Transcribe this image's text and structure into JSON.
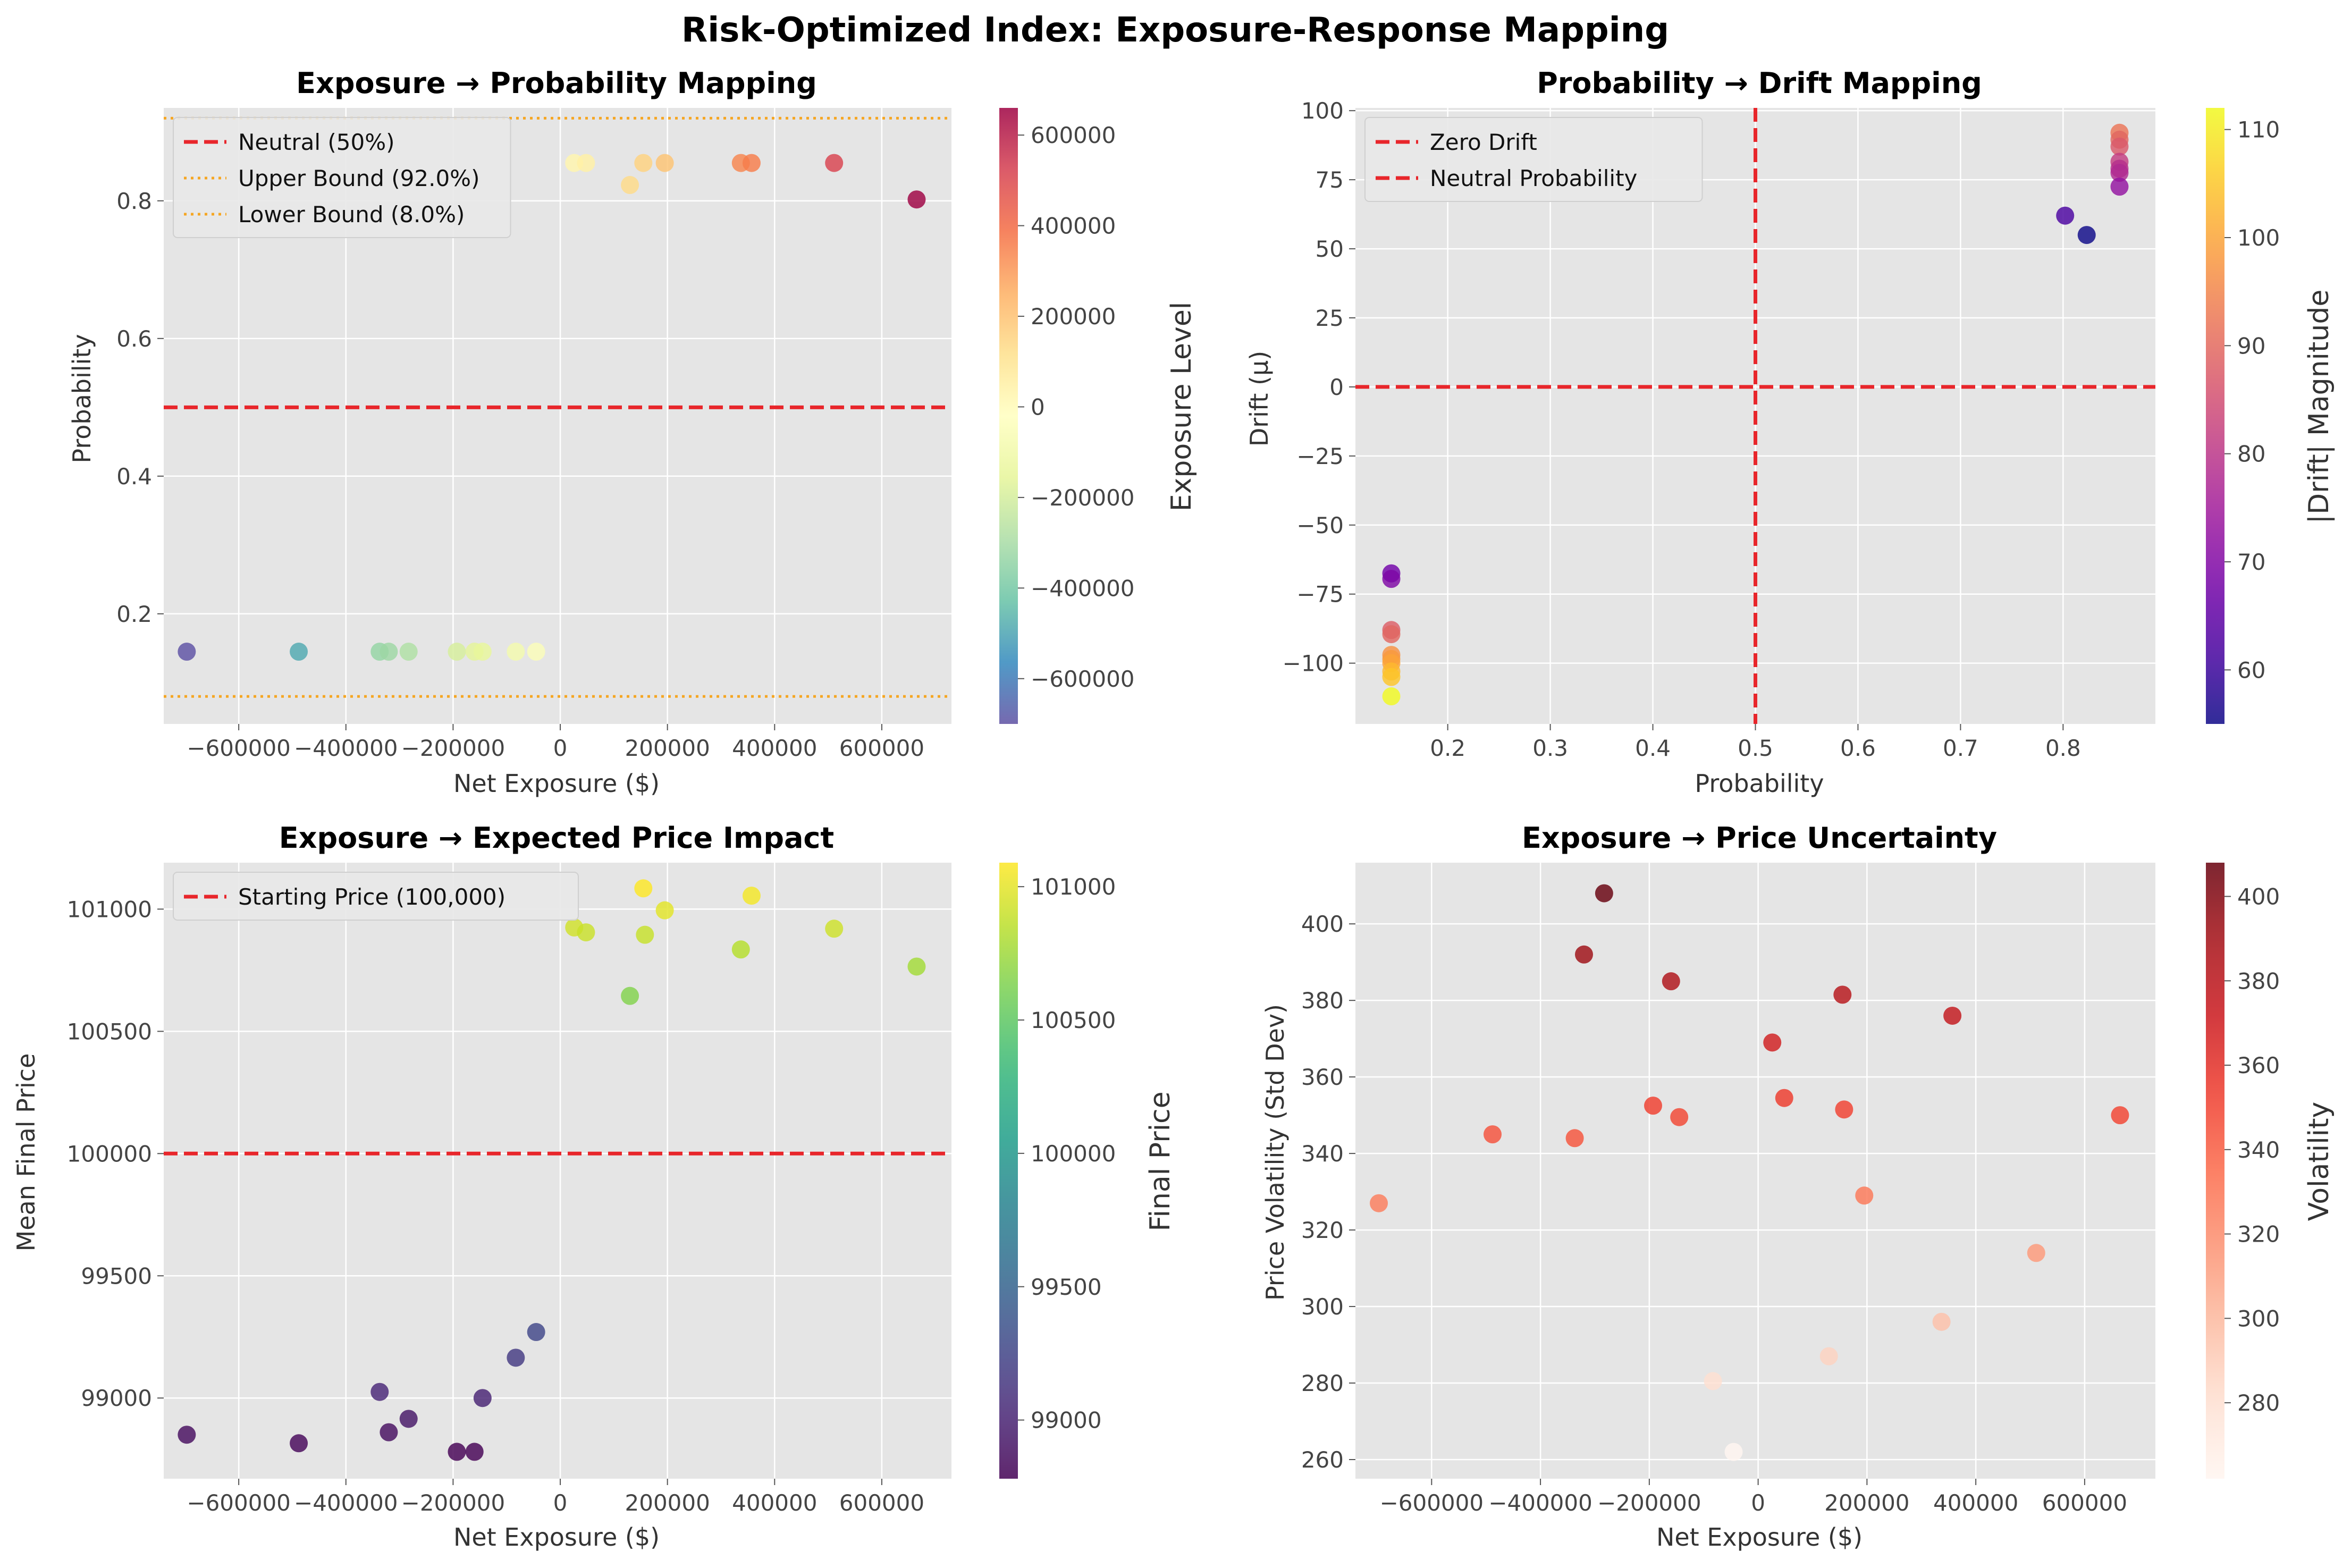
{
  "figure": {
    "title": "Risk-Optimized Index: Exposure-Response Mapping"
  },
  "colors": {
    "panel_bg": "#e5e5e5",
    "grid": "#ffffff",
    "neutral_line": "#e8262b",
    "bound_line": "#f5a623"
  },
  "chart_data": [
    {
      "id": "p1",
      "type": "scatter",
      "title": "Exposure → Probability Mapping",
      "xlabel": "Net Exposure ($)",
      "ylabel": "Probability",
      "xlim": [
        -740000,
        730000
      ],
      "ylim": [
        0.04,
        0.935
      ],
      "xticks": [
        -600000,
        -400000,
        -200000,
        0,
        200000,
        400000,
        600000
      ],
      "xtick_labels": [
        "−600000",
        "−400000",
        "−200000",
        "0",
        "200000",
        "400000",
        "600000"
      ],
      "yticks": [
        0.2,
        0.4,
        0.6,
        0.8
      ],
      "ytick_labels": [
        "0.2",
        "0.4",
        "0.6",
        "0.8"
      ],
      "colormap": "Spectral_r",
      "color_by": "x",
      "colorbar": {
        "label": "Exposure Level",
        "range": [
          -700000,
          660000
        ],
        "ticks": [
          -600000,
          -400000,
          -200000,
          0,
          200000,
          400000,
          600000
        ],
        "tick_labels": [
          "−600000",
          "−400000",
          "−200000",
          "0",
          "200000",
          "400000",
          "600000"
        ]
      },
      "points": [
        {
          "x": -697000,
          "y": 0.145
        },
        {
          "x": -488000,
          "y": 0.145
        },
        {
          "x": -337000,
          "y": 0.145
        },
        {
          "x": -320000,
          "y": 0.145
        },
        {
          "x": -283000,
          "y": 0.145
        },
        {
          "x": -193000,
          "y": 0.145
        },
        {
          "x": -160000,
          "y": 0.145
        },
        {
          "x": -145000,
          "y": 0.145
        },
        {
          "x": -83000,
          "y": 0.145
        },
        {
          "x": -45000,
          "y": 0.145
        },
        {
          "x": 26000,
          "y": 0.855
        },
        {
          "x": 48000,
          "y": 0.855
        },
        {
          "x": 130000,
          "y": 0.823
        },
        {
          "x": 155000,
          "y": 0.855
        },
        {
          "x": 195000,
          "y": 0.855
        },
        {
          "x": 337000,
          "y": 0.855
        },
        {
          "x": 357000,
          "y": 0.855
        },
        {
          "x": 511000,
          "y": 0.855
        },
        {
          "x": 665000,
          "y": 0.802
        }
      ],
      "hlines": [
        {
          "y": 0.5,
          "style": "dashed",
          "color": "#e8262b",
          "label": "Neutral (50%)"
        },
        {
          "y": 0.92,
          "style": "dotted",
          "color": "#f5a623",
          "label": "Upper Bound (92.0%)"
        },
        {
          "y": 0.08,
          "style": "dotted",
          "color": "#f5a623",
          "label": "Lower Bound (8.0%)"
        }
      ],
      "vlines": [],
      "legend": "upper-left",
      "grid": true
    },
    {
      "id": "p2",
      "type": "scatter",
      "title": "Probability → Drift Mapping",
      "xlabel": "Probability",
      "ylabel": "Drift (μ)",
      "xlim": [
        0.11,
        0.89
      ],
      "ylim": [
        -122,
        101
      ],
      "xticks": [
        0.2,
        0.3,
        0.4,
        0.5,
        0.6,
        0.7,
        0.8
      ],
      "xtick_labels": [
        "0.2",
        "0.3",
        "0.4",
        "0.5",
        "0.6",
        "0.7",
        "0.8"
      ],
      "yticks": [
        -100,
        -75,
        -50,
        -25,
        0,
        25,
        50,
        75,
        100
      ],
      "ytick_labels": [
        "−100",
        "−75",
        "−50",
        "−25",
        "0",
        "25",
        "50",
        "75",
        "100"
      ],
      "colormap": "plasma",
      "color_by": "abs_y",
      "colorbar": {
        "label": "|Drift| Magnitude",
        "range": [
          55,
          112
        ],
        "ticks": [
          60,
          70,
          80,
          90,
          100,
          110
        ],
        "tick_labels": [
          "60",
          "70",
          "80",
          "90",
          "100",
          "110"
        ]
      },
      "points": [
        {
          "x": 0.145,
          "y": -67.5
        },
        {
          "x": 0.145,
          "y": -69.5
        },
        {
          "x": 0.145,
          "y": -88
        },
        {
          "x": 0.145,
          "y": -89.5
        },
        {
          "x": 0.145,
          "y": -97
        },
        {
          "x": 0.145,
          "y": -98.5
        },
        {
          "x": 0.145,
          "y": -100
        },
        {
          "x": 0.145,
          "y": -103
        },
        {
          "x": 0.145,
          "y": -105
        },
        {
          "x": 0.145,
          "y": -112
        },
        {
          "x": 0.802,
          "y": 62
        },
        {
          "x": 0.823,
          "y": 55
        },
        {
          "x": 0.855,
          "y": 92
        },
        {
          "x": 0.855,
          "y": 89.5
        },
        {
          "x": 0.855,
          "y": 87
        },
        {
          "x": 0.855,
          "y": 81.5
        },
        {
          "x": 0.855,
          "y": 79
        },
        {
          "x": 0.855,
          "y": 77.5
        },
        {
          "x": 0.855,
          "y": 72.5
        }
      ],
      "hlines": [
        {
          "y": 0,
          "style": "dashed",
          "color": "#e8262b",
          "label": "Zero Drift"
        }
      ],
      "vlines": [
        {
          "x": 0.5,
          "style": "dashed",
          "color": "#e8262b",
          "label": "Neutral Probability"
        }
      ],
      "legend": "upper-left",
      "grid": true
    },
    {
      "id": "p3",
      "type": "scatter",
      "title": "Exposure → Expected Price Impact",
      "xlabel": "Net Exposure ($)",
      "ylabel": "Mean Final Price",
      "xlim": [
        -740000,
        730000
      ],
      "ylim": [
        98670,
        101190
      ],
      "xticks": [
        -600000,
        -400000,
        -200000,
        0,
        200000,
        400000,
        600000
      ],
      "xtick_labels": [
        "−600000",
        "−400000",
        "−200000",
        "0",
        "200000",
        "400000",
        "600000"
      ],
      "yticks": [
        99000,
        99500,
        100000,
        100500,
        101000
      ],
      "ytick_labels": [
        "99000",
        "99500",
        "100000",
        "100500",
        "101000"
      ],
      "colormap": "viridis",
      "color_by": "y",
      "colorbar": {
        "label": "Final Price",
        "range": [
          98780,
          101090
        ],
        "ticks": [
          99000,
          99500,
          100000,
          100500,
          101000
        ],
        "tick_labels": [
          "99000",
          "99500",
          "100000",
          "100500",
          "101000"
        ]
      },
      "points": [
        {
          "x": -697000,
          "y": 98850
        },
        {
          "x": -488000,
          "y": 98815
        },
        {
          "x": -337000,
          "y": 99025
        },
        {
          "x": -320000,
          "y": 98860
        },
        {
          "x": -283000,
          "y": 98915
        },
        {
          "x": -193000,
          "y": 98780
        },
        {
          "x": -160000,
          "y": 98780
        },
        {
          "x": -145000,
          "y": 99000
        },
        {
          "x": -83000,
          "y": 99165
        },
        {
          "x": -45000,
          "y": 99270
        },
        {
          "x": 26000,
          "y": 100925
        },
        {
          "x": 48000,
          "y": 100905
        },
        {
          "x": 130000,
          "y": 100645
        },
        {
          "x": 155000,
          "y": 101085
        },
        {
          "x": 158000,
          "y": 100895
        },
        {
          "x": 195000,
          "y": 100995
        },
        {
          "x": 337000,
          "y": 100835
        },
        {
          "x": 357000,
          "y": 101055
        },
        {
          "x": 511000,
          "y": 100920
        },
        {
          "x": 665000,
          "y": 100765
        }
      ],
      "hlines": [
        {
          "y": 100000,
          "style": "dashed",
          "color": "#e8262b",
          "label": "Starting Price (100,000)"
        }
      ],
      "vlines": [],
      "legend": "upper-left",
      "grid": true
    },
    {
      "id": "p4",
      "type": "scatter",
      "title": "Exposure → Price Uncertainty",
      "xlabel": "Net Exposure ($)",
      "ylabel": "Price Volatility (Std Dev)",
      "xlim": [
        -740000,
        730000
      ],
      "ylim": [
        255,
        416
      ],
      "xticks": [
        -600000,
        -400000,
        -200000,
        0,
        200000,
        400000,
        600000
      ],
      "xtick_labels": [
        "−600000",
        "−400000",
        "−200000",
        "0",
        "200000",
        "400000",
        "600000"
      ],
      "yticks": [
        260,
        280,
        300,
        320,
        340,
        360,
        380,
        400
      ],
      "ytick_labels": [
        "260",
        "280",
        "300",
        "320",
        "340",
        "360",
        "380",
        "400"
      ],
      "colormap": "Reds",
      "color_by": "y",
      "colorbar": {
        "label": "Volatility",
        "range": [
          262,
          408
        ],
        "ticks": [
          280,
          300,
          320,
          340,
          360,
          380,
          400
        ],
        "tick_labels": [
          "280",
          "300",
          "320",
          "340",
          "360",
          "380",
          "400"
        ]
      },
      "points": [
        {
          "x": -697000,
          "y": 327
        },
        {
          "x": -488000,
          "y": 345
        },
        {
          "x": -337000,
          "y": 344
        },
        {
          "x": -320000,
          "y": 392
        },
        {
          "x": -283000,
          "y": 408
        },
        {
          "x": -193000,
          "y": 352.5
        },
        {
          "x": -160000,
          "y": 385
        },
        {
          "x": -145000,
          "y": 349.5
        },
        {
          "x": -83000,
          "y": 280.5
        },
        {
          "x": -45000,
          "y": 262
        },
        {
          "x": 26000,
          "y": 369
        },
        {
          "x": 48000,
          "y": 354.5
        },
        {
          "x": 130000,
          "y": 287
        },
        {
          "x": 155000,
          "y": 381.5
        },
        {
          "x": 158000,
          "y": 351.5
        },
        {
          "x": 195000,
          "y": 329
        },
        {
          "x": 337000,
          "y": 296
        },
        {
          "x": 357000,
          "y": 376
        },
        {
          "x": 511000,
          "y": 314
        },
        {
          "x": 665000,
          "y": 350
        }
      ],
      "hlines": [],
      "vlines": [],
      "legend": "none",
      "grid": true
    }
  ]
}
